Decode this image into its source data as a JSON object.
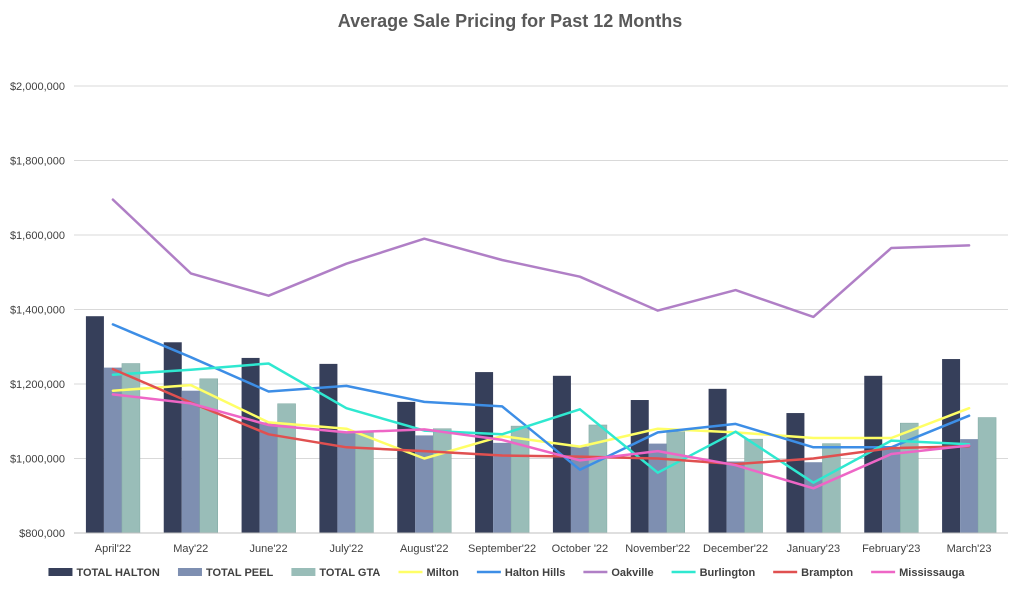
{
  "chart_data": {
    "type": "bar",
    "title": "Average Sale Pricing for Past 12 Months",
    "xlabel": "",
    "ylabel": "",
    "ylim": [
      800000,
      2000000
    ],
    "y_ticks": [
      "$800,000",
      "$1,000,000",
      "$1,200,000",
      "$1,400,000",
      "$1,600,000",
      "$1,800,000",
      "$2,000,000"
    ],
    "y_tick_values": [
      800000,
      1000000,
      1200000,
      1400000,
      1600000,
      1800000,
      2000000
    ],
    "grid": true,
    "legend_position": "bottom",
    "categories": [
      "April'22",
      "May'22",
      "June'22",
      "July'22",
      "August'22",
      "September'22",
      "October '22",
      "November'22",
      "December'22",
      "January'23",
      "February'23",
      "March'23"
    ],
    "bar_series": [
      {
        "name": "TOTAL HALTON",
        "color": "#363f5a",
        "values": [
          1382000,
          1312000,
          1270000,
          1254000,
          1152000,
          1232000,
          1222000,
          1157000,
          1187000,
          1122000,
          1222000,
          1267000
        ]
      },
      {
        "name": "TOTAL PEEL",
        "color": "#7e8fb1",
        "values": [
          1244000,
          1182000,
          1097000,
          1072000,
          1062000,
          1042000,
          1032000,
          1040000,
          992000,
          990000,
          1030000,
          1052000
        ]
      },
      {
        "name": "TOTAL GTA",
        "color": "#99bdb8",
        "values": [
          1255000,
          1214000,
          1147000,
          1070000,
          1080000,
          1087000,
          1090000,
          1072000,
          1052000,
          1040000,
          1095000,
          1110000
        ]
      }
    ],
    "line_series": [
      {
        "name": "Milton",
        "color": "#ffff66",
        "values": [
          1182000,
          1197000,
          1097000,
          1080000,
          1000000,
          1060000,
          1032000,
          1080000,
          1070000,
          1055000,
          1055000,
          1135000
        ]
      },
      {
        "name": "Halton Hills",
        "color": "#3d8ee6",
        "values": [
          1360000,
          1272000,
          1180000,
          1195000,
          1152000,
          1140000,
          970000,
          1070000,
          1093000,
          1030000,
          1030000,
          1115000
        ]
      },
      {
        "name": "Oakville",
        "color": "#b07fc6",
        "values": [
          1695000,
          1497000,
          1437000,
          1523000,
          1590000,
          1533000,
          1488000,
          1397000,
          1452000,
          1380000,
          1565000,
          1572000
        ]
      },
      {
        "name": "Burlington",
        "color": "#2fe8d0",
        "values": [
          1225000,
          1238000,
          1255000,
          1135000,
          1075000,
          1065000,
          1132000,
          962000,
          1072000,
          935000,
          1048000,
          1038000
        ]
      },
      {
        "name": "Brampton",
        "color": "#e05050",
        "values": [
          1240000,
          1150000,
          1065000,
          1030000,
          1020000,
          1008000,
          1005000,
          1000000,
          985000,
          1000000,
          1028000,
          1033000
        ]
      },
      {
        "name": "Mississauga",
        "color": "#ee66c6",
        "values": [
          1172000,
          1148000,
          1090000,
          1070000,
          1078000,
          1050000,
          995000,
          1020000,
          982000,
          920000,
          1012000,
          1035000
        ]
      }
    ]
  }
}
